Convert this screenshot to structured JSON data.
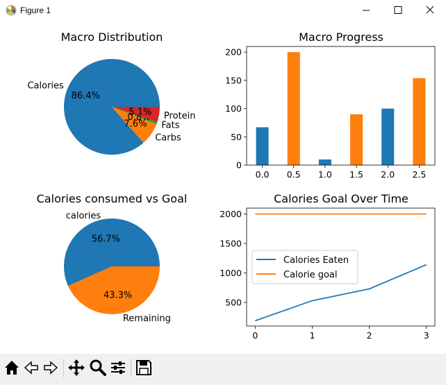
{
  "window": {
    "title": "Figure 1"
  },
  "toolbar": {
    "buttons": [
      "home-icon",
      "back-icon",
      "forward-icon",
      "pan-icon",
      "zoom-icon",
      "configure-subplots-icon",
      "save-icon"
    ]
  },
  "colors": {
    "blue": "#1f77b4",
    "orange": "#ff7f0e",
    "green": "#2ca02c",
    "red": "#d62728"
  },
  "chart_data": [
    {
      "type": "pie",
      "title": "Macro Distribution",
      "labels": [
        "Calories",
        "Carbs",
        "Fats",
        "Protein"
      ],
      "values": [
        86.4,
        7.6,
        0.8,
        5.1
      ],
      "autopct": [
        "86.4%",
        "7.6%",
        "0.8%",
        "5.1%"
      ]
    },
    {
      "type": "bar",
      "title": "Macro Progress",
      "x": [
        0.0,
        0.5,
        1.0,
        1.5,
        2.0,
        2.5
      ],
      "values": [
        67,
        200,
        10,
        90,
        100,
        154
      ],
      "bar_colors": [
        "#1f77b4",
        "#ff7f0e",
        "#1f77b4",
        "#ff7f0e",
        "#1f77b4",
        "#ff7f0e"
      ],
      "xticks": [
        "0.0",
        "0.5",
        "1.0",
        "1.5",
        "2.0",
        "2.5"
      ],
      "yticks": [
        "0",
        "50",
        "100",
        "150",
        "200"
      ],
      "ylim": [
        0,
        210
      ]
    },
    {
      "type": "pie",
      "title": "Calories consumed vs Goal",
      "labels": [
        "calories",
        "Remaining"
      ],
      "values": [
        56.7,
        43.3
      ],
      "autopct": [
        "56.7%",
        "43.3%"
      ]
    },
    {
      "type": "line",
      "title": "Calories Goal Over Time",
      "x": [
        0,
        1,
        2,
        3
      ],
      "series": [
        {
          "name": "Calories Eaten",
          "values": [
            190,
            530,
            730,
            1140
          ]
        },
        {
          "name": "Calorie goal",
          "values": [
            2000,
            2000,
            2000,
            2000
          ]
        }
      ],
      "xticks": [
        "0",
        "1",
        "2",
        "3"
      ],
      "yticks": [
        "500",
        "1000",
        "1500",
        "2000"
      ],
      "xlim": [
        -0.15,
        3.15
      ],
      "ylim": [
        100,
        2100
      ]
    }
  ]
}
